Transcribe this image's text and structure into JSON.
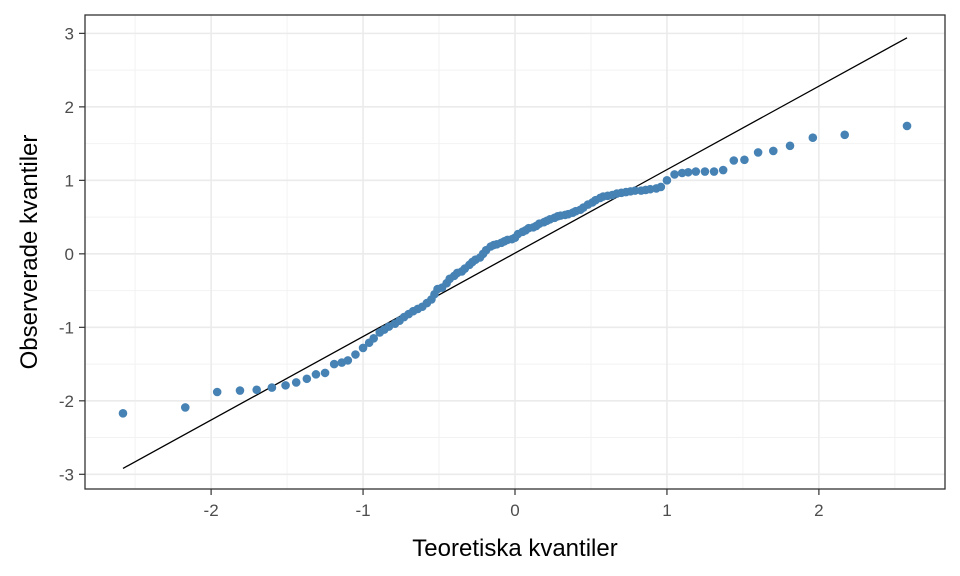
{
  "chart_data": {
    "type": "scatter",
    "title": "",
    "xlabel": "Teoretiska kvantiler",
    "ylabel": "Observerade kvantiler",
    "xlim": [
      -2.83,
      2.83
    ],
    "ylim": [
      -3.2,
      3.25
    ],
    "x_ticks": [
      -2,
      -1,
      0,
      1,
      2
    ],
    "y_ticks": [
      -3,
      -2,
      -1,
      0,
      1,
      2,
      3
    ],
    "x_tick_labels": [
      "-2",
      "-1",
      "0",
      "1",
      "2"
    ],
    "y_tick_labels": [
      "-3",
      "-2",
      "-1",
      "0",
      "1",
      "2",
      "3"
    ],
    "grid": true,
    "point_color": "#4682b4",
    "reference_line": {
      "x": [
        -2.58,
        2.58
      ],
      "y": [
        -2.92,
        2.94
      ],
      "color": "#000000"
    },
    "points": [
      [
        -2.58,
        -2.17
      ],
      [
        -2.17,
        -2.09
      ],
      [
        -1.96,
        -1.88
      ],
      [
        -1.81,
        -1.86
      ],
      [
        -1.7,
        -1.85
      ],
      [
        -1.6,
        -1.82
      ],
      [
        -1.51,
        -1.79
      ],
      [
        -1.44,
        -1.75
      ],
      [
        -1.37,
        -1.7
      ],
      [
        -1.31,
        -1.64
      ],
      [
        -1.25,
        -1.62
      ],
      [
        -1.19,
        -1.5
      ],
      [
        -1.14,
        -1.48
      ],
      [
        -1.1,
        -1.45
      ],
      [
        -1.05,
        -1.37
      ],
      [
        -1.0,
        -1.28
      ],
      [
        -0.96,
        -1.21
      ],
      [
        -0.93,
        -1.15
      ],
      [
        -0.89,
        -1.07
      ],
      [
        -0.86,
        -1.03
      ],
      [
        -0.83,
        -0.99
      ],
      [
        -0.79,
        -0.95
      ],
      [
        -0.76,
        -0.91
      ],
      [
        -0.73,
        -0.86
      ],
      [
        -0.7,
        -0.82
      ],
      [
        -0.67,
        -0.78
      ],
      [
        -0.64,
        -0.75
      ],
      [
        -0.61,
        -0.72
      ],
      [
        -0.58,
        -0.67
      ],
      [
        -0.55,
        -0.62
      ],
      [
        -0.53,
        -0.55
      ],
      [
        -0.51,
        -0.48
      ],
      [
        -0.48,
        -0.46
      ],
      [
        -0.45,
        -0.4
      ],
      [
        -0.43,
        -0.34
      ],
      [
        -0.4,
        -0.3
      ],
      [
        -0.38,
        -0.26
      ],
      [
        -0.35,
        -0.24
      ],
      [
        -0.33,
        -0.2
      ],
      [
        -0.3,
        -0.15
      ],
      [
        -0.28,
        -0.11
      ],
      [
        -0.26,
        -0.08
      ],
      [
        -0.23,
        -0.05
      ],
      [
        -0.21,
        0.0
      ],
      [
        -0.19,
        0.05
      ],
      [
        -0.16,
        0.1
      ],
      [
        -0.14,
        0.12
      ],
      [
        -0.12,
        0.13
      ],
      [
        -0.09,
        0.15
      ],
      [
        -0.07,
        0.17
      ],
      [
        -0.05,
        0.19
      ],
      [
        -0.02,
        0.2
      ],
      [
        0.0,
        0.22
      ],
      [
        0.02,
        0.27
      ],
      [
        0.05,
        0.3
      ],
      [
        0.07,
        0.32
      ],
      [
        0.09,
        0.35
      ],
      [
        0.12,
        0.36
      ],
      [
        0.14,
        0.38
      ],
      [
        0.16,
        0.41
      ],
      [
        0.19,
        0.43
      ],
      [
        0.21,
        0.45
      ],
      [
        0.23,
        0.47
      ],
      [
        0.26,
        0.49
      ],
      [
        0.28,
        0.51
      ],
      [
        0.3,
        0.52
      ],
      [
        0.33,
        0.53
      ],
      [
        0.35,
        0.54
      ],
      [
        0.38,
        0.56
      ],
      [
        0.4,
        0.58
      ],
      [
        0.43,
        0.6
      ],
      [
        0.45,
        0.63
      ],
      [
        0.48,
        0.67
      ],
      [
        0.51,
        0.7
      ],
      [
        0.53,
        0.73
      ],
      [
        0.56,
        0.76
      ],
      [
        0.58,
        0.78
      ],
      [
        0.61,
        0.79
      ],
      [
        0.64,
        0.8
      ],
      [
        0.67,
        0.82
      ],
      [
        0.7,
        0.83
      ],
      [
        0.73,
        0.84
      ],
      [
        0.76,
        0.85
      ],
      [
        0.79,
        0.86
      ],
      [
        0.83,
        0.86
      ],
      [
        0.86,
        0.87
      ],
      [
        0.89,
        0.88
      ],
      [
        0.93,
        0.89
      ],
      [
        0.96,
        0.91
      ],
      [
        1.0,
        1.0
      ],
      [
        1.05,
        1.08
      ],
      [
        1.1,
        1.1
      ],
      [
        1.14,
        1.11
      ],
      [
        1.19,
        1.12
      ],
      [
        1.25,
        1.12
      ],
      [
        1.31,
        1.12
      ],
      [
        1.37,
        1.14
      ],
      [
        1.44,
        1.27
      ],
      [
        1.51,
        1.28
      ],
      [
        1.6,
        1.38
      ],
      [
        1.7,
        1.4
      ],
      [
        1.81,
        1.47
      ],
      [
        1.96,
        1.58
      ],
      [
        2.17,
        1.62
      ],
      [
        2.58,
        1.74
      ]
    ]
  }
}
